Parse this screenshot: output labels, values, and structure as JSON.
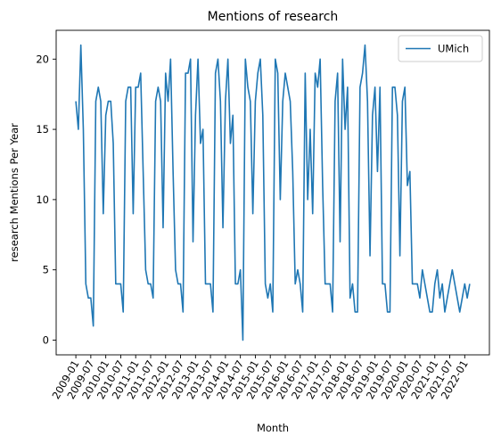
{
  "chart_data": {
    "type": "line",
    "title": "Mentions of research",
    "xlabel": "Month",
    "ylabel": "research Mentions Per Year",
    "ylim": [
      -1.05,
      22.05
    ],
    "yticks": [
      0,
      5,
      10,
      15,
      20
    ],
    "x_start": "2009-01",
    "x_step": "1 month",
    "xticks": [
      "2009-01",
      "2009-07",
      "2010-01",
      "2010-07",
      "2011-01",
      "2011-07",
      "2012-01",
      "2012-07",
      "2013-01",
      "2013-07",
      "2014-01",
      "2014-07",
      "2015-01",
      "2015-07",
      "2016-01",
      "2016-07",
      "2017-01",
      "2017-07",
      "2018-01",
      "2018-07",
      "2019-01",
      "2019-07",
      "2020-01",
      "2020-07",
      "2021-01",
      "2021-07",
      "2022-01"
    ],
    "legend": {
      "location": "upper right"
    },
    "grid": false,
    "series": [
      {
        "name": "UMich",
        "color": "#1f77b4",
        "values": [
          17,
          15,
          21,
          15,
          4,
          3,
          3,
          1,
          17,
          18,
          17,
          9,
          16,
          17,
          17,
          14,
          4,
          4,
          4,
          2,
          17,
          18,
          18,
          9,
          18,
          18,
          19,
          12,
          5,
          4,
          4,
          3,
          17,
          18,
          17,
          8,
          19,
          17,
          20,
          12,
          5,
          4,
          4,
          2,
          19,
          19,
          20,
          7,
          16,
          20,
          14,
          15,
          4,
          4,
          4,
          2,
          19,
          20,
          17,
          8,
          17,
          20,
          14,
          16,
          4,
          4,
          5,
          0,
          20,
          18,
          17,
          9,
          17,
          19,
          20,
          16,
          4,
          3,
          4,
          2,
          20,
          19,
          10,
          17,
          19,
          18,
          17,
          12,
          4,
          5,
          4,
          2,
          19,
          10,
          15,
          9,
          19,
          18,
          20,
          11,
          4,
          4,
          4,
          2,
          17,
          19,
          7,
          20,
          15,
          18,
          3,
          4,
          2,
          2,
          18,
          19,
          21,
          17,
          6,
          16,
          18,
          12,
          18,
          4,
          4,
          2,
          2,
          18,
          18,
          16,
          6,
          17,
          18,
          11,
          12,
          4,
          4,
          4,
          3,
          5,
          4,
          3,
          2,
          2,
          4,
          5,
          3,
          4,
          2,
          3,
          4,
          5,
          4,
          3,
          2,
          3,
          4,
          3,
          4
        ]
      }
    ]
  }
}
